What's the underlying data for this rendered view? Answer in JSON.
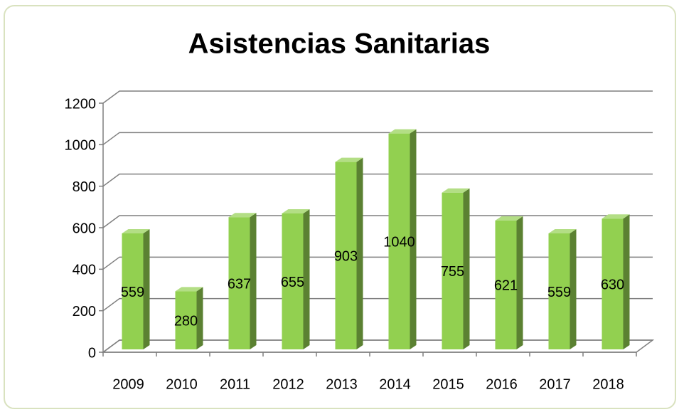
{
  "chart_data": {
    "type": "bar3d",
    "title": "Asistencias Sanitarias",
    "categories": [
      "2009",
      "2010",
      "2011",
      "2012",
      "2013",
      "2014",
      "2015",
      "2016",
      "2017",
      "2018"
    ],
    "values": [
      559,
      280,
      637,
      655,
      903,
      1040,
      755,
      621,
      559,
      630
    ],
    "color": "#92d050",
    "ylim": [
      0,
      1200
    ],
    "yticks": [
      0,
      200,
      400,
      600,
      800,
      1000,
      1200
    ],
    "grid": true
  }
}
